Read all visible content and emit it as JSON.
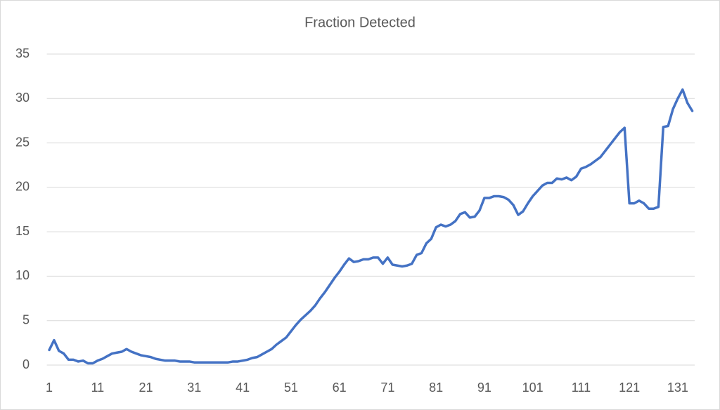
{
  "chart_data": {
    "type": "line",
    "title": "Fraction Detected",
    "categories": [
      "1",
      null,
      null,
      null,
      null,
      null,
      null,
      null,
      null,
      null,
      "11",
      null,
      null,
      null,
      null,
      null,
      null,
      null,
      null,
      null,
      "21",
      null,
      null,
      null,
      null,
      null,
      null,
      null,
      null,
      null,
      "31",
      null,
      null,
      null,
      null,
      null,
      null,
      null,
      null,
      null,
      "41",
      null,
      null,
      null,
      null,
      null,
      null,
      null,
      null,
      null,
      "51",
      null,
      null,
      null,
      null,
      null,
      null,
      null,
      null,
      null,
      "61",
      null,
      null,
      null,
      null,
      null,
      null,
      null,
      null,
      null,
      "71",
      null,
      null,
      null,
      null,
      null,
      null,
      null,
      null,
      null,
      "81",
      null,
      null,
      null,
      null,
      null,
      null,
      null,
      null,
      null,
      "91",
      null,
      null,
      null,
      null,
      null,
      null,
      null,
      null,
      null,
      "101",
      null,
      null,
      null,
      null,
      null,
      null,
      null,
      null,
      null,
      "111",
      null,
      null,
      null,
      null,
      null,
      null,
      null,
      null,
      null,
      "121",
      null,
      null,
      null,
      null,
      null,
      null,
      null,
      null,
      null,
      "131",
      null,
      null,
      null
    ],
    "values": [
      1.7,
      2.8,
      1.6,
      1.3,
      0.6,
      0.6,
      0.4,
      0.5,
      0.2,
      0.2,
      0.5,
      0.7,
      1.0,
      1.3,
      1.4,
      1.5,
      1.8,
      1.5,
      1.3,
      1.1,
      1.0,
      0.9,
      0.7,
      0.6,
      0.5,
      0.5,
      0.5,
      0.4,
      0.4,
      0.4,
      0.3,
      0.3,
      0.3,
      0.3,
      0.3,
      0.3,
      0.3,
      0.3,
      0.4,
      0.4,
      0.5,
      0.6,
      0.8,
      0.9,
      1.2,
      1.5,
      1.8,
      2.3,
      2.7,
      3.1,
      3.8,
      4.5,
      5.1,
      5.6,
      6.1,
      6.7,
      7.5,
      8.2,
      9.0,
      9.8,
      10.5,
      11.3,
      12.0,
      11.6,
      11.7,
      11.9,
      11.9,
      12.1,
      12.1,
      11.4,
      12.1,
      11.3,
      11.2,
      11.1,
      11.2,
      11.4,
      12.4,
      12.6,
      13.7,
      14.2,
      15.5,
      15.8,
      15.6,
      15.8,
      16.2,
      17.0,
      17.2,
      16.6,
      16.7,
      17.4,
      18.8,
      18.8,
      19.0,
      19.0,
      18.9,
      18.6,
      18.0,
      16.9,
      17.3,
      18.2,
      19.0,
      19.6,
      20.2,
      20.5,
      20.5,
      21.0,
      20.9,
      21.1,
      20.8,
      21.2,
      22.1,
      22.3,
      22.6,
      23.0,
      23.4,
      24.1,
      24.8,
      25.5,
      26.2,
      26.7,
      18.2,
      18.2,
      18.5,
      18.2,
      17.6,
      17.6,
      17.8,
      26.8,
      26.9,
      28.8,
      30.0,
      31.0,
      29.5,
      28.6
    ],
    "color": "#4472c4",
    "ylim": [
      0,
      35
    ],
    "yticks": [
      0,
      5,
      10,
      15,
      20,
      25,
      30,
      35
    ],
    "grid": true
  }
}
